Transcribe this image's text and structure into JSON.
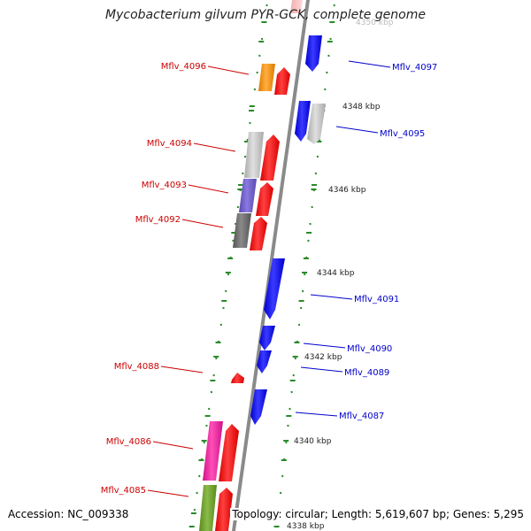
{
  "title": "Mycobacterium gilvum PYR-GCK, complete genome",
  "footer": {
    "accession": "Accession: NC_009338",
    "topology": "Topology: circular; Length: 5,619,607 bp; Genes: 5,295"
  },
  "colors": {
    "backbone": "#8a8a8a",
    "dots": "#2a8a2a",
    "forward_label": "#cc0000",
    "reverse_label": "#0000cc",
    "red": "#ff0000",
    "blue": "#0000ff"
  },
  "ticks": [
    {
      "label": "4338 kbp"
    },
    {
      "label": "4340 kbp"
    },
    {
      "label": "4342 kbp"
    },
    {
      "label": "4344 kbp"
    },
    {
      "label": "4346 kbp"
    },
    {
      "label": "4348 kbp"
    },
    {
      "label": "4350 kbp"
    }
  ],
  "labels": [
    {
      "text": "Mflv_4096",
      "strand": "forward"
    },
    {
      "text": "Mflv_4094",
      "strand": "forward"
    },
    {
      "text": "Mflv_4093",
      "strand": "forward"
    },
    {
      "text": "Mflv_4092",
      "strand": "forward"
    },
    {
      "text": "Mflv_4088",
      "strand": "forward"
    },
    {
      "text": "Mflv_4086",
      "strand": "forward"
    },
    {
      "text": "Mflv_4085",
      "strand": "forward"
    },
    {
      "text": "Mflv_4097",
      "strand": "reverse"
    },
    {
      "text": "Mflv_4095",
      "strand": "reverse"
    },
    {
      "text": "Mflv_4091",
      "strand": "reverse"
    },
    {
      "text": "Mflv_4090",
      "strand": "reverse"
    },
    {
      "text": "Mflv_4089",
      "strand": "reverse"
    },
    {
      "text": "Mflv_4087",
      "strand": "reverse"
    }
  ]
}
